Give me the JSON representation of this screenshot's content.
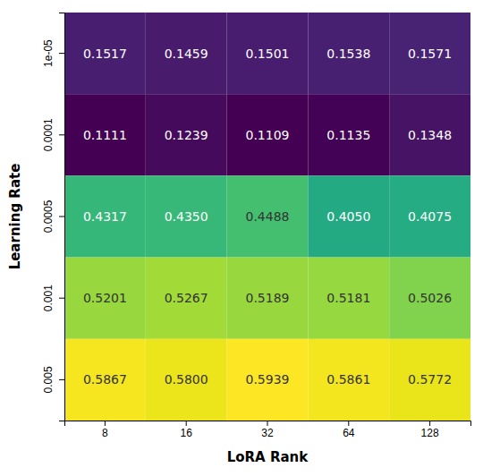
{
  "chart_data": {
    "type": "heatmap",
    "categories": [
      "8",
      "16",
      "32",
      "64",
      "128"
    ],
    "y_categories": [
      "1e-05",
      "0.0001",
      "0.0005",
      "0.001",
      "0.005"
    ],
    "values": [
      [
        0.1517,
        0.1459,
        0.1501,
        0.1538,
        0.1571
      ],
      [
        0.1111,
        0.1239,
        0.1109,
        0.1135,
        0.1348
      ],
      [
        0.4317,
        0.435,
        0.4488,
        0.405,
        0.4075
      ],
      [
        0.5201,
        0.5267,
        0.5189,
        0.5181,
        0.5026
      ],
      [
        0.5867,
        0.58,
        0.5939,
        0.5861,
        0.5772
      ]
    ],
    "value_labels": [
      [
        "0.1517",
        "0.1459",
        "0.1501",
        "0.1538",
        "0.1571"
      ],
      [
        "0.1111",
        "0.1239",
        "0.1109",
        "0.1135",
        "0.1348"
      ],
      [
        "0.4317",
        "0.4350",
        "0.4488",
        "0.4050",
        "0.4075"
      ],
      [
        "0.5201",
        "0.5267",
        "0.5189",
        "0.5181",
        "0.5026"
      ],
      [
        "0.5867",
        "0.5800",
        "0.5939",
        "0.5861",
        "0.5772"
      ]
    ],
    "color_range": [
      0.1109,
      0.5939
    ],
    "color": "viridis",
    "data_labels": true,
    "xlabel": "LoRA Rank",
    "ylabel": "Learning Rate"
  }
}
